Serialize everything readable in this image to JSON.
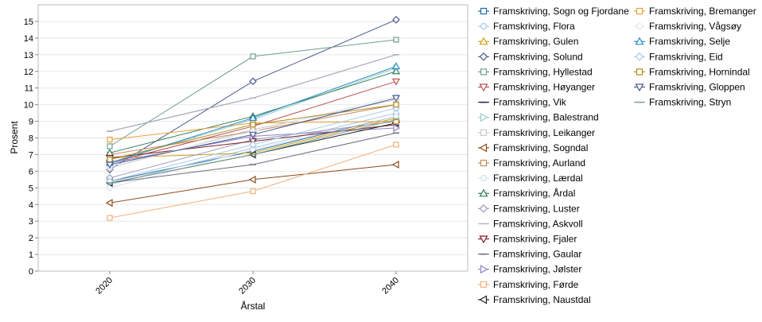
{
  "chart_data": {
    "type": "line",
    "title": "",
    "xlabel": "Årstal",
    "ylabel": "Prosent",
    "x": [
      "2020",
      "2030",
      "2040"
    ],
    "ylim": [
      0,
      16
    ],
    "yticks": [
      0,
      1,
      2,
      3,
      4,
      5,
      6,
      7,
      8,
      9,
      10,
      11,
      12,
      13,
      14,
      15
    ],
    "grid": true,
    "legend_position": "right",
    "series": [
      {
        "name": "Framskriving, Sogn og Fjordane",
        "values": [
          5.4,
          7.2,
          9.3
        ],
        "color": "#1f6aa5",
        "marker": "square"
      },
      {
        "name": "Framskriving, Flora",
        "values": [
          5.2,
          7.4,
          9.5
        ],
        "color": "#a9c7e8",
        "marker": "circle"
      },
      {
        "name": "Framskriving, Gulen",
        "values": [
          6.8,
          7.1,
          9.2
        ],
        "color": "#d4a017",
        "marker": "triangle-up"
      },
      {
        "name": "Framskriving, Solund",
        "values": [
          6.1,
          11.4,
          15.1
        ],
        "color": "#4a5a8c",
        "marker": "diamond"
      },
      {
        "name": "Framskriving, Hyllestad",
        "values": [
          7.5,
          12.9,
          13.9
        ],
        "color": "#6e9e8a",
        "marker": "square"
      },
      {
        "name": "Framskriving, Høyanger",
        "values": [
          6.5,
          8.7,
          11.4
        ],
        "color": "#b5514e",
        "marker": "triangle-down"
      },
      {
        "name": "Framskriving, Vik",
        "values": [
          8.4,
          10.4,
          13.0
        ],
        "color": "#222255",
        "marker": "line"
      },
      {
        "name": "Framskriving, Balestrand",
        "values": [
          6.5,
          9.1,
          12.2
        ],
        "color": "#9bd0c8",
        "marker": "triangle-right"
      },
      {
        "name": "Framskriving, Leikanger",
        "values": [
          6.2,
          8.5,
          10.3
        ],
        "color": "#c8c8c8",
        "marker": "square"
      },
      {
        "name": "Framskriving, Sogndal",
        "values": [
          4.1,
          5.5,
          6.4
        ],
        "color": "#8b4a1a",
        "marker": "triangle-left"
      },
      {
        "name": "Framskriving, Aurland",
        "values": [
          7.0,
          8.4,
          10.0
        ],
        "color": "#c48a5e",
        "marker": "square"
      },
      {
        "name": "Framskriving, Lærdal",
        "values": [
          5.0,
          7.3,
          9.3
        ],
        "color": "#cfe0ea",
        "marker": "circle"
      },
      {
        "name": "Framskriving, Årdal",
        "values": [
          7.1,
          9.3,
          12.0
        ],
        "color": "#2e7d5b",
        "marker": "triangle-up"
      },
      {
        "name": "Framskriving, Luster",
        "values": [
          5.6,
          7.9,
          9.0
        ],
        "color": "#9b9bb8",
        "marker": "diamond"
      },
      {
        "name": "Framskriving, Askvoll",
        "values": [
          8.4,
          10.4,
          13.0
        ],
        "color": "#b8b8c8",
        "marker": "line"
      },
      {
        "name": "Framskriving, Fjaler",
        "values": [
          6.8,
          7.8,
          8.8
        ],
        "color": "#7d1f24",
        "marker": "triangle-down"
      },
      {
        "name": "Framskriving, Gaular",
        "values": [
          5.3,
          6.4,
          8.3
        ],
        "color": "#6c6c7c",
        "marker": "line"
      },
      {
        "name": "Framskriving, Jølster",
        "values": [
          6.5,
          8.1,
          8.6
        ],
        "color": "#8e84c8",
        "marker": "triangle-right"
      },
      {
        "name": "Framskriving, Førde",
        "values": [
          3.2,
          4.8,
          7.6
        ],
        "color": "#f0b07a",
        "marker": "square"
      },
      {
        "name": "Framskriving, Naustdal",
        "values": [
          5.3,
          7.0,
          8.9
        ],
        "color": "#222222",
        "marker": "triangle-left"
      },
      {
        "name": "Framskriving, Bremanger",
        "values": [
          7.9,
          8.9,
          9.0
        ],
        "color": "#e6a23c",
        "marker": "square"
      },
      {
        "name": "Framskriving, Vågsøy",
        "values": [
          6.3,
          8.4,
          10.5
        ],
        "color": "#dde8f4",
        "marker": "circle"
      },
      {
        "name": "Framskriving, Selje",
        "values": [
          6.5,
          9.2,
          12.3
        ],
        "color": "#2a8cc7",
        "marker": "triangle-up"
      },
      {
        "name": "Framskriving, Eid",
        "values": [
          5.4,
          7.6,
          9.8
        ],
        "color": "#a8c8e8",
        "marker": "diamond"
      },
      {
        "name": "Framskriving, Hornindal",
        "values": [
          6.7,
          8.8,
          10.0
        ],
        "color": "#b08a1e",
        "marker": "square"
      },
      {
        "name": "Framskriving, Gloppen",
        "values": [
          6.4,
          8.2,
          10.4
        ],
        "color": "#4a5a8c",
        "marker": "triangle-down"
      },
      {
        "name": "Framskriving, Stryn",
        "values": [
          5.3,
          7.0,
          9.1
        ],
        "color": "#7da08f",
        "marker": "line"
      }
    ]
  }
}
